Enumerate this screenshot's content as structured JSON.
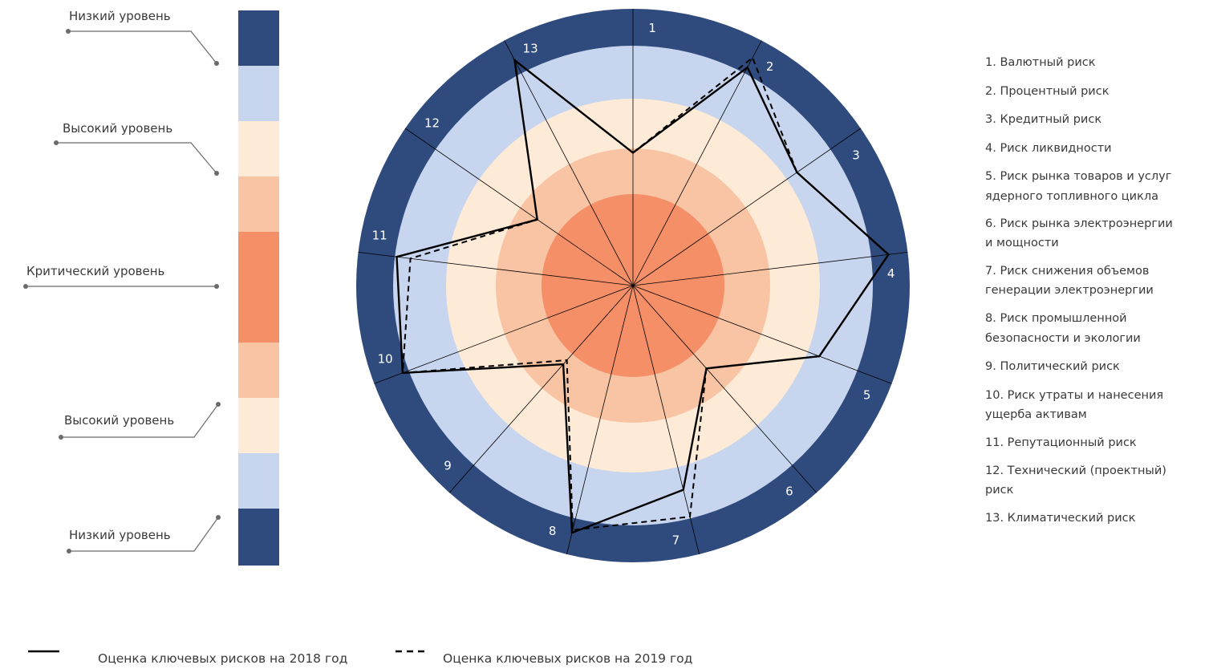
{
  "colors": {
    "low": "#2f4a7c",
    "medium": "#c8d5ee",
    "elevated": "#fdebd7",
    "high": "#f8c4a4",
    "critical": "#f58f67",
    "line": "#000000"
  },
  "scale_labels": {
    "low_top": "Низкий уровень",
    "high_top": "Высокий уровень",
    "critical": "Критический уровень",
    "high_bottom": "Высокий уровень",
    "low_bottom": "Низкий уровень"
  },
  "legend_items": [
    "1. Валютный риск",
    "2. Процентный риск",
    "3. Кредитный риск",
    "4. Риск ликвидности",
    "5. Риск рынка товаров и услуг",
    "ядерного топливного цикла",
    "6. Риск рынка электроэнергии",
    "и мощности",
    "7. Риск снижения объемов",
    "генерации электроэнергии",
    "8. Риск промышленной",
    "безопасности и экологии",
    "9. Политический риск",
    "10. Риск утраты и нанесения",
    "ущерба активам",
    "11. Репутационный риск",
    "12. Технический (проектный)",
    "риск",
    "13. Климатический риск"
  ],
  "chart_data": {
    "type": "radar",
    "axes": [
      "1",
      "2",
      "3",
      "4",
      "5",
      "6",
      "7",
      "8",
      "9",
      "10",
      "11",
      "12",
      "13"
    ],
    "radial_scale_note": "distance from center in fractions of outer radius; 0 = critical (center), 1 = outer edge (low)",
    "bands": [
      "critical",
      "high",
      "elevated",
      "medium",
      "low"
    ],
    "series": [
      {
        "name": "Оценка ключевых рисков на 2018 год",
        "style": "solid",
        "values": [
          0.48,
          0.89,
          0.72,
          0.93,
          0.72,
          0.4,
          0.76,
          0.92,
          0.38,
          0.89,
          0.86,
          0.42,
          0.92
        ]
      },
      {
        "name": "Оценка ключевых рисков на 2019 год",
        "style": "dashed",
        "values": [
          0.48,
          0.93,
          0.72,
          0.93,
          0.72,
          0.4,
          0.86,
          0.91,
          0.36,
          0.89,
          0.81,
          0.42,
          0.92
        ]
      }
    ]
  }
}
